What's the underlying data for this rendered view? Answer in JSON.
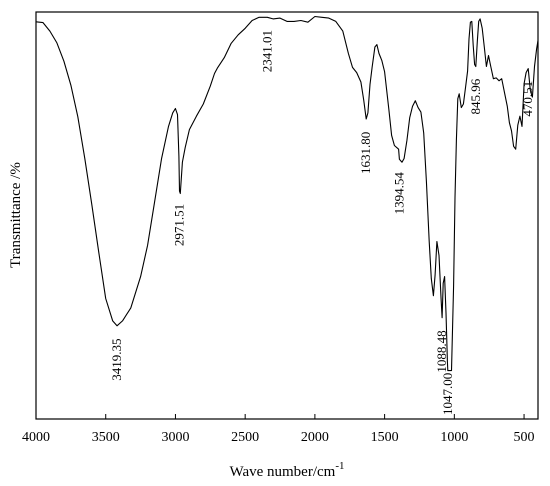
{
  "chart_data": {
    "type": "line",
    "title": "",
    "xlabel": "Wave number/cm",
    "xlabel_superscript": "-1",
    "ylabel": "Transmittance /%",
    "xlim": [
      4000,
      400
    ],
    "ylim": [
      0,
      100
    ],
    "x_reversed": true,
    "y_ticks_shown": false,
    "grid": false,
    "legend": "none",
    "x_ticks": [
      {
        "value": 4000,
        "label": "4000"
      },
      {
        "value": 3500,
        "label": "3500"
      },
      {
        "value": 3000,
        "label": "3000"
      },
      {
        "value": 2500,
        "label": "2500"
      },
      {
        "value": 2000,
        "label": "2000"
      },
      {
        "value": 1500,
        "label": "1500"
      },
      {
        "value": 1000,
        "label": "1000"
      },
      {
        "value": 500,
        "label": "500"
      }
    ],
    "series": [
      {
        "color": "#000000",
        "points": [
          [
            4000,
            97.6
          ],
          [
            3950,
            97.4
          ],
          [
            3900,
            95.3
          ],
          [
            3850,
            92.4
          ],
          [
            3800,
            87.9
          ],
          [
            3750,
            82.0
          ],
          [
            3700,
            74.3
          ],
          [
            3650,
            64.0
          ],
          [
            3600,
            52.7
          ],
          [
            3550,
            40.9
          ],
          [
            3500,
            29.6
          ],
          [
            3450,
            24.1
          ],
          [
            3419,
            22.9
          ],
          [
            3380,
            24.1
          ],
          [
            3320,
            27.3
          ],
          [
            3250,
            35.0
          ],
          [
            3200,
            42.7
          ],
          [
            3150,
            53.2
          ],
          [
            3100,
            63.9
          ],
          [
            3050,
            71.9
          ],
          [
            3020,
            75.2
          ],
          [
            3000,
            76.3
          ],
          [
            2985,
            74.8
          ],
          [
            2975,
            64.6
          ],
          [
            2971,
            56.0
          ],
          [
            2965,
            55.4
          ],
          [
            2950,
            63.1
          ],
          [
            2930,
            66.7
          ],
          [
            2900,
            71.1
          ],
          [
            2850,
            74.4
          ],
          [
            2800,
            77.4
          ],
          [
            2750,
            81.8
          ],
          [
            2720,
            84.9
          ],
          [
            2700,
            86.2
          ],
          [
            2650,
            88.8
          ],
          [
            2600,
            92.3
          ],
          [
            2550,
            94.4
          ],
          [
            2500,
            96.0
          ],
          [
            2450,
            97.9
          ],
          [
            2400,
            98.7
          ],
          [
            2341,
            98.7
          ],
          [
            2300,
            98.3
          ],
          [
            2250,
            98.5
          ],
          [
            2200,
            97.7
          ],
          [
            2150,
            97.7
          ],
          [
            2100,
            97.9
          ],
          [
            2050,
            97.5
          ],
          [
            2000,
            98.9
          ],
          [
            1950,
            98.7
          ],
          [
            1900,
            98.5
          ],
          [
            1850,
            97.7
          ],
          [
            1800,
            95.3
          ],
          [
            1760,
            89.8
          ],
          [
            1730,
            86.4
          ],
          [
            1700,
            85.1
          ],
          [
            1670,
            82.8
          ],
          [
            1650,
            78.4
          ],
          [
            1632,
            73.7
          ],
          [
            1620,
            75.2
          ],
          [
            1605,
            82.2
          ],
          [
            1590,
            86.4
          ],
          [
            1570,
            91.4
          ],
          [
            1555,
            92.0
          ],
          [
            1540,
            89.8
          ],
          [
            1520,
            88.1
          ],
          [
            1500,
            85.3
          ],
          [
            1470,
            76.2
          ],
          [
            1450,
            69.7
          ],
          [
            1430,
            67.2
          ],
          [
            1400,
            66.3
          ],
          [
            1394,
            63.8
          ],
          [
            1375,
            63.1
          ],
          [
            1360,
            64.0
          ],
          [
            1340,
            68.4
          ],
          [
            1320,
            74.0
          ],
          [
            1300,
            76.8
          ],
          [
            1280,
            78.2
          ],
          [
            1260,
            76.5
          ],
          [
            1240,
            75.4
          ],
          [
            1220,
            70.3
          ],
          [
            1200,
            58.4
          ],
          [
            1180,
            43.6
          ],
          [
            1165,
            34.5
          ],
          [
            1150,
            30.3
          ],
          [
            1138,
            35.4
          ],
          [
            1125,
            43.6
          ],
          [
            1110,
            40.2
          ],
          [
            1095,
            29.4
          ],
          [
            1088,
            24.9
          ],
          [
            1080,
            33.4
          ],
          [
            1070,
            35.0
          ],
          [
            1060,
            26.1
          ],
          [
            1050,
            14.1
          ],
          [
            1047,
            11.9
          ],
          [
            1035,
            11.9
          ],
          [
            1020,
            11.9
          ],
          [
            1005,
            32.8
          ],
          [
            995,
            54.4
          ],
          [
            985,
            68.6
          ],
          [
            975,
            78.7
          ],
          [
            965,
            79.9
          ],
          [
            950,
            76.5
          ],
          [
            935,
            77.4
          ],
          [
            920,
            81.4
          ],
          [
            905,
            85.5
          ],
          [
            895,
            93.4
          ],
          [
            885,
            97.5
          ],
          [
            875,
            97.7
          ],
          [
            865,
            91.8
          ],
          [
            855,
            87.1
          ],
          [
            846,
            86.6
          ],
          [
            835,
            92.7
          ],
          [
            825,
            97.7
          ],
          [
            815,
            98.3
          ],
          [
            800,
            96.0
          ],
          [
            785,
            91.4
          ],
          [
            770,
            86.6
          ],
          [
            755,
            89.3
          ],
          [
            740,
            86.8
          ],
          [
            720,
            83.6
          ],
          [
            700,
            83.8
          ],
          [
            680,
            83.1
          ],
          [
            660,
            83.6
          ],
          [
            640,
            80.2
          ],
          [
            620,
            76.8
          ],
          [
            605,
            72.8
          ],
          [
            590,
            70.8
          ],
          [
            575,
            67.0
          ],
          [
            560,
            66.3
          ],
          [
            545,
            72.2
          ],
          [
            530,
            74.4
          ],
          [
            515,
            71.9
          ],
          [
            500,
            82.4
          ],
          [
            485,
            85.1
          ],
          [
            470,
            86.1
          ],
          [
            455,
            80.8
          ],
          [
            440,
            79.1
          ],
          [
            425,
            86.6
          ],
          [
            410,
            90.9
          ],
          [
            400,
            93.0
          ]
        ]
      }
    ],
    "annotations": [
      {
        "x": 3419.35,
        "y": 22.9,
        "label": "3419.35"
      },
      {
        "x": 2971.51,
        "y": 56.0,
        "label": "2971.51"
      },
      {
        "x": 2341.01,
        "y": 98.7,
        "label": "2341.01"
      },
      {
        "x": 1631.8,
        "y": 73.7,
        "label": "1631.80"
      },
      {
        "x": 1394.54,
        "y": 63.8,
        "label": "1394.54"
      },
      {
        "x": 1088.48,
        "y": 24.9,
        "label": "1088.48"
      },
      {
        "x": 1047.0,
        "y": 11.9,
        "label": "1047.00"
      },
      {
        "x": 845.96,
        "y": 86.6,
        "label": "845.96"
      },
      {
        "x": 470.51,
        "y": 86.1,
        "label": "470.51"
      }
    ]
  }
}
